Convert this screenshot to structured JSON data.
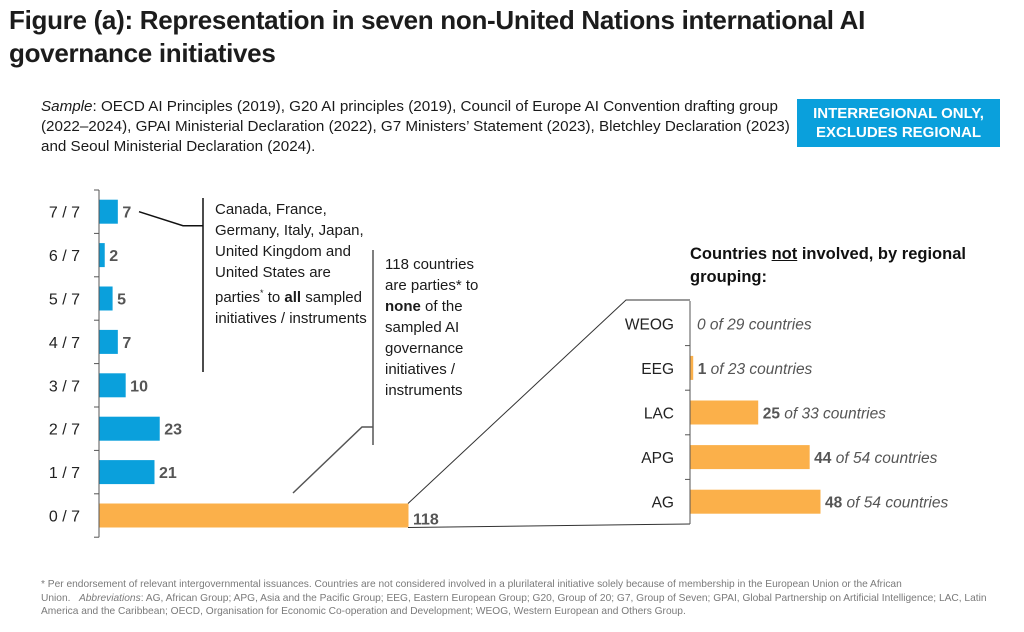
{
  "title": "Figure (a): Representation in seven non-United Nations international AI governance initiatives",
  "sample": {
    "label": "Sample",
    "text": ": OECD AI Principles (2019), G20 AI principles (2019), Council of Europe AI Convention drafting group (2022–2024), GPAI Ministerial Declaration (2022), G7 Ministers’ Statement (2023), Bletchley Declaration (2023) and Seoul Ministerial Declaration (2024)."
  },
  "badge": {
    "line1": "INTERREGIONAL ONLY,",
    "line2": "EXCLUDES REGIONAL",
    "color": "#0aa0dc"
  },
  "annotations": {
    "all": {
      "text_before": "Canada, France, Germany, Italy, Japan, United Kingdom and United States are parties",
      "sup": "*",
      "text_mid": " to ",
      "bold": "all",
      "text_after": " sampled initiatives / instruments"
    },
    "none": {
      "text_before": "118 countries are parties* to ",
      "bold": "none",
      "text_after": " of the sampled AI governance initiatives / instruments"
    }
  },
  "right_heading": {
    "part1": "Countries ",
    "underlined": "not",
    "part2": " involved, by regional grouping:"
  },
  "colors": {
    "blue": "#0aa0dc",
    "orange": "#fbb04a",
    "axis": "#555555",
    "value_text": "#555555"
  },
  "chart_data": [
    {
      "type": "bar",
      "orientation": "horizontal",
      "title": "",
      "xlabel": "",
      "ylabel": "",
      "categories": [
        "7 / 7",
        "6 / 7",
        "5 / 7",
        "4 / 7",
        "3 / 7",
        "2 / 7",
        "1 / 7",
        "0 / 7"
      ],
      "values": [
        7,
        2,
        5,
        7,
        10,
        23,
        21,
        118
      ],
      "bar_colors": [
        "blue",
        "blue",
        "blue",
        "blue",
        "blue",
        "blue",
        "blue",
        "orange"
      ],
      "data_labels": [
        "7",
        "2",
        "5",
        "7",
        "10",
        "23",
        "21",
        "118"
      ],
      "xlim": [
        0,
        118
      ],
      "grid": false
    },
    {
      "type": "bar",
      "orientation": "horizontal",
      "title": "Countries not involved, by regional grouping:",
      "categories": [
        "WEOG",
        "EEG",
        "LAC",
        "APG",
        "AG"
      ],
      "values": [
        0,
        1,
        25,
        44,
        48
      ],
      "totals": [
        29,
        23,
        33,
        54,
        54
      ],
      "data_labels": [
        {
          "value": "0",
          "suffix": " of 29 countries"
        },
        {
          "value": "1",
          "suffix": " of 23 countries"
        },
        {
          "value": "25",
          "suffix": " of 33 countries"
        },
        {
          "value": "44",
          "suffix": " of 54 countries"
        },
        {
          "value": "48",
          "suffix": " of 54 countries"
        }
      ],
      "bar_color": "orange",
      "xlim": [
        0,
        54
      ],
      "grid": false
    }
  ],
  "footnote": {
    "line1": "* Per endorsement of relevant intergovernmental issuances. Countries are not considered involved in a plurilateral initiative solely because of membership in the European Union or the African Union.",
    "abbr_label": "Abbreviations",
    "abbr_text": ": AG, African Group; APG, Asia and the Pacific Group; EEG, Eastern European Group; G20, Group of 20; G7, Group of Seven; GPAI, Global Partnership on Artificial Intelligence; LAC, Latin America and the Caribbean; OECD, Organisation for Economic Co-operation and Development; WEOG, Western European and Others Group."
  }
}
